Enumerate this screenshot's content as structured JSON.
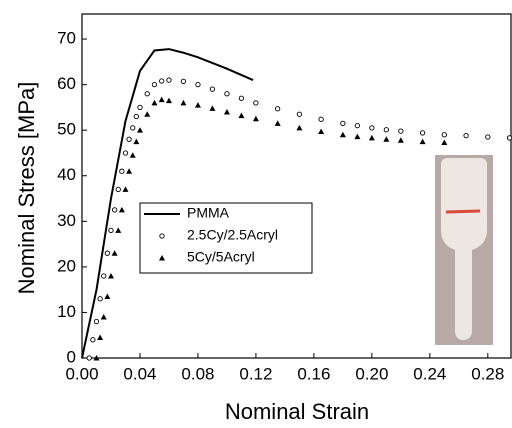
{
  "chart_data": {
    "type": "line",
    "x_label": "Nominal Strain",
    "y_label": "Nominal Stress [MPa]",
    "xlim": [
      0,
      0.296
    ],
    "ylim": [
      0,
      75.5
    ],
    "xticks": [
      {
        "value": 0,
        "label": "0.00"
      },
      {
        "value": 0.04,
        "label": "0.04"
      },
      {
        "value": 0.08,
        "label": "0.08"
      },
      {
        "value": 0.12,
        "label": "0.12"
      },
      {
        "value": 0.16,
        "label": "0.16"
      },
      {
        "value": 0.2,
        "label": "0.20"
      },
      {
        "value": 0.24,
        "label": "0.24"
      },
      {
        "value": 0.28,
        "label": "0.28"
      }
    ],
    "yticks": [
      0,
      10,
      20,
      30,
      40,
      50,
      60,
      70
    ],
    "legend": "center-left",
    "series": [
      {
        "name": "PMMA",
        "color": "#000000",
        "marker": "line",
        "x": [
          0,
          0.01,
          0.02,
          0.03,
          0.04,
          0.05,
          0.06,
          0.07,
          0.08,
          0.1,
          0.118
        ],
        "values": [
          0,
          15,
          35,
          52,
          63,
          67.5,
          67.8,
          67,
          66,
          63.5,
          61
        ]
      },
      {
        "name": "2.5Cy/2.5Acryl",
        "color": "#000000",
        "marker": "circle",
        "x": [
          0.005,
          0.0075,
          0.01,
          0.0125,
          0.015,
          0.0175,
          0.02,
          0.0225,
          0.025,
          0.0275,
          0.03,
          0.0325,
          0.035,
          0.0375,
          0.04,
          0.045,
          0.05,
          0.055,
          0.06,
          0.07,
          0.08,
          0.09,
          0.1,
          0.11,
          0.12,
          0.135,
          0.15,
          0.165,
          0.18,
          0.19,
          0.2,
          0.21,
          0.22,
          0.235,
          0.25,
          0.265,
          0.28,
          0.295
        ],
        "values": [
          0,
          4,
          8,
          13,
          18,
          23,
          28,
          32.5,
          37,
          41,
          45,
          48,
          50.5,
          53,
          55,
          58,
          60,
          60.8,
          61,
          60.7,
          60,
          59,
          58,
          57,
          56,
          54.7,
          53.5,
          52.4,
          51.5,
          51,
          50.5,
          50.1,
          49.8,
          49.4,
          49,
          48.8,
          48.5,
          48.3
        ]
      },
      {
        "name": "5Cy/5Acryl",
        "color": "#000000",
        "marker": "triangle",
        "x": [
          0.01,
          0.0125,
          0.015,
          0.0175,
          0.02,
          0.0225,
          0.025,
          0.0275,
          0.03,
          0.0325,
          0.035,
          0.0375,
          0.04,
          0.045,
          0.05,
          0.055,
          0.06,
          0.07,
          0.08,
          0.09,
          0.1,
          0.11,
          0.12,
          0.135,
          0.15,
          0.165,
          0.18,
          0.19,
          0.2,
          0.21,
          0.22,
          0.235,
          0.25
        ],
        "values": [
          0,
          4.5,
          9,
          13.5,
          18,
          23,
          28,
          32.5,
          37,
          41,
          44.5,
          47.5,
          50,
          53.5,
          56,
          56.7,
          56.5,
          56,
          55.5,
          54.8,
          54,
          53.2,
          52.5,
          51.5,
          50.5,
          49.7,
          49,
          48.6,
          48.3,
          48,
          47.8,
          47.5,
          47.3
        ]
      }
    ]
  }
}
